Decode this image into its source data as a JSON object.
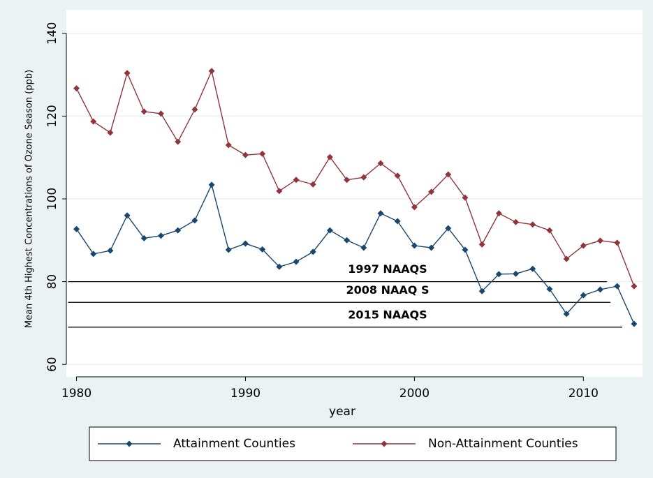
{
  "chart_data": {
    "type": "line",
    "x_label": "year",
    "y_label": "Mean 4th Highest Concentrations of Ozone Season (ppb)",
    "x": [
      1980,
      1981,
      1982,
      1983,
      1984,
      1985,
      1986,
      1987,
      1988,
      1989,
      1990,
      1991,
      1992,
      1993,
      1994,
      1995,
      1996,
      1997,
      1998,
      1999,
      2000,
      2001,
      2002,
      2003,
      2004,
      2005,
      2006,
      2007,
      2008,
      2009,
      2010,
      2011,
      2012,
      2013
    ],
    "series": [
      {
        "name": "Attainment Counties",
        "color": "#1a476f",
        "values": [
          92.7,
          86.7,
          87.5,
          96.0,
          90.5,
          91.1,
          92.4,
          94.8,
          103.4,
          87.7,
          89.2,
          87.8,
          83.6,
          84.8,
          87.2,
          92.4,
          90.0,
          88.2,
          96.5,
          94.6,
          88.7,
          88.2,
          92.9,
          87.7,
          77.7,
          81.8,
          81.9,
          83.1,
          78.2,
          72.2,
          76.7,
          78.1,
          78.9,
          69.8
        ]
      },
      {
        "name": "Non-Attainment Counties",
        "color": "#90353b",
        "values": [
          126.7,
          118.7,
          116.0,
          130.4,
          121.1,
          120.6,
          113.8,
          121.6,
          130.9,
          113.0,
          110.6,
          110.9,
          101.9,
          104.6,
          103.5,
          110.1,
          104.6,
          105.2,
          108.6,
          105.6,
          98.0,
          101.7,
          105.9,
          100.3,
          89.0,
          96.5,
          94.4,
          93.8,
          92.4,
          85.5,
          88.7,
          89.9,
          89.4,
          78.9
        ]
      }
    ],
    "reference_lines": [
      {
        "label": "1997 NAAQS",
        "value": 80,
        "x": [
          1979.5,
          2011.4
        ]
      },
      {
        "label": "2008 NAAQ S",
        "value": 75,
        "x": [
          1979.5,
          2011.6
        ]
      },
      {
        "label": "2015 NAAQS",
        "value": 69,
        "x": [
          1979.5,
          2012.3
        ]
      }
    ],
    "xlim": [
      1979.4,
      2013.5
    ],
    "xticks": [
      1980,
      1990,
      2000,
      2010
    ],
    "ylim": [
      57,
      145.7
    ],
    "yticks": [
      60,
      80,
      100,
      120,
      140
    ],
    "grid": true,
    "legend": "bottom"
  }
}
